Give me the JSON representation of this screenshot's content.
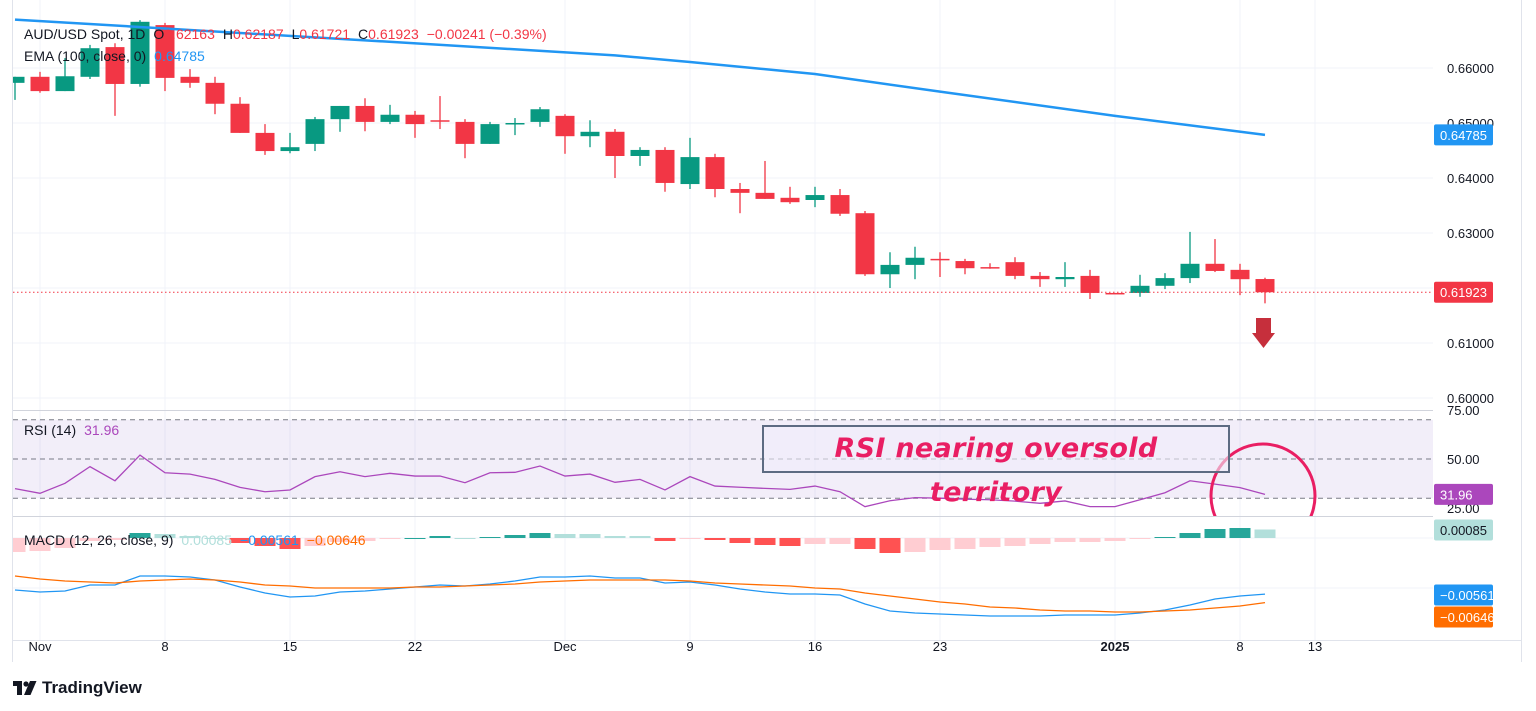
{
  "chart_data": [
    {
      "type": "candlestick",
      "symbol": "AUD/USD Spot",
      "interval": "1D",
      "legend": {
        "title": "AUD/USD Spot, 1D",
        "o_label": "O",
        "o": "0.62163",
        "h_label": "H",
        "h": "0.62187",
        "l_label": "L",
        "l": "0.61721",
        "c_label": "C",
        "c": "0.61923",
        "change": "−0.00241 (−0.39%)"
      },
      "ema_legend": {
        "label": "EMA (100, close, 0)",
        "value": "0.64785"
      },
      "y_ticks": [
        "0.66000",
        "0.65000",
        "0.64000",
        "0.63000",
        "0.61000",
        "0.60000"
      ],
      "y_tick_values": [
        0.66,
        0.65,
        0.64,
        0.63,
        0.61,
        0.6
      ],
      "last_price_label": "0.61923",
      "ema_price_label": "0.64785",
      "candle_fields": [
        "date",
        "open",
        "high",
        "low",
        "close"
      ],
      "candles": [
        [
          "2024-10-31",
          0.6573,
          0.6584,
          0.6542,
          0.6584
        ],
        [
          "2024-11-01",
          0.6584,
          0.6593,
          0.6555,
          0.6558
        ],
        [
          "2024-11-04",
          0.6558,
          0.6618,
          0.6558,
          0.6585
        ],
        [
          "2024-11-05",
          0.6584,
          0.6642,
          0.658,
          0.6636
        ],
        [
          "2024-11-06",
          0.6638,
          0.6645,
          0.6513,
          0.6571
        ],
        [
          "2024-11-07",
          0.6571,
          0.6687,
          0.6566,
          0.6684
        ],
        [
          "2024-11-08",
          0.6678,
          0.6682,
          0.6558,
          0.6582
        ],
        [
          "2024-11-11",
          0.6584,
          0.6598,
          0.6564,
          0.6573
        ],
        [
          "2024-11-12",
          0.6573,
          0.6584,
          0.6516,
          0.6535
        ],
        [
          "2024-11-13",
          0.6535,
          0.6547,
          0.6482,
          0.6482
        ],
        [
          "2024-11-14",
          0.6482,
          0.6498,
          0.6442,
          0.6449
        ],
        [
          "2024-11-15",
          0.6449,
          0.6482,
          0.6445,
          0.6456
        ],
        [
          "2024-11-18",
          0.6462,
          0.6511,
          0.6449,
          0.6507
        ],
        [
          "2024-11-19",
          0.6507,
          0.6531,
          0.6484,
          0.6531
        ],
        [
          "2024-11-20",
          0.6531,
          0.6545,
          0.6485,
          0.6502
        ],
        [
          "2024-11-21",
          0.6502,
          0.6533,
          0.6498,
          0.6515
        ],
        [
          "2024-11-22",
          0.6515,
          0.6522,
          0.6473,
          0.6498
        ],
        [
          "2024-11-25",
          0.6505,
          0.6549,
          0.6489,
          0.6504
        ],
        [
          "2024-11-26",
          0.6502,
          0.6507,
          0.6436,
          0.6462
        ],
        [
          "2024-11-27",
          0.6462,
          0.6502,
          0.6462,
          0.6498
        ],
        [
          "2024-11-28",
          0.6498,
          0.6509,
          0.6478,
          0.65
        ],
        [
          "2024-11-29",
          0.6502,
          0.6529,
          0.6493,
          0.6525
        ],
        [
          "2024-12-02",
          0.6513,
          0.6516,
          0.6444,
          0.6476
        ],
        [
          "2024-12-03",
          0.6476,
          0.6505,
          0.6456,
          0.6484
        ],
        [
          "2024-12-04",
          0.6484,
          0.6489,
          0.64,
          0.644
        ],
        [
          "2024-12-05",
          0.644,
          0.6456,
          0.6422,
          0.6451
        ],
        [
          "2024-12-06",
          0.6451,
          0.6456,
          0.6375,
          0.6391
        ],
        [
          "2024-12-09",
          0.6389,
          0.6473,
          0.638,
          0.6438
        ],
        [
          "2024-12-10",
          0.6438,
          0.6444,
          0.6365,
          0.638
        ],
        [
          "2024-12-11",
          0.638,
          0.6391,
          0.6336,
          0.6373
        ],
        [
          "2024-12-12",
          0.6373,
          0.6431,
          0.6362,
          0.6362
        ],
        [
          "2024-12-13",
          0.6364,
          0.6384,
          0.6353,
          0.6356
        ],
        [
          "2024-12-16",
          0.636,
          0.6384,
          0.6347,
          0.6369
        ],
        [
          "2024-12-17",
          0.6369,
          0.638,
          0.6331,
          0.6335
        ],
        [
          "2024-12-18",
          0.6336,
          0.634,
          0.6222,
          0.6225
        ],
        [
          "2024-12-19",
          0.6225,
          0.6265,
          0.62,
          0.6242
        ],
        [
          "2024-12-20",
          0.6242,
          0.6275,
          0.6216,
          0.6255
        ],
        [
          "2024-12-23",
          0.6253,
          0.6265,
          0.622,
          0.6251
        ],
        [
          "2024-12-24",
          0.6249,
          0.6253,
          0.6225,
          0.6236
        ],
        [
          "2024-12-25",
          0.6238,
          0.6245,
          0.6235,
          0.6236
        ],
        [
          "2024-12-26",
          0.6247,
          0.6256,
          0.6216,
          0.6222
        ],
        [
          "2024-12-27",
          0.6222,
          0.6229,
          0.6202,
          0.6216
        ],
        [
          "2024-12-30",
          0.6216,
          0.6247,
          0.6202,
          0.622
        ],
        [
          "2024-12-31",
          0.6222,
          0.6233,
          0.618,
          0.6191
        ],
        [
          "2025-01-01",
          0.6191,
          0.6191,
          0.6189,
          0.6189
        ],
        [
          "2025-01-02",
          0.6191,
          0.6224,
          0.6184,
          0.6204
        ],
        [
          "2025-01-03",
          0.6204,
          0.6227,
          0.6198,
          0.6218
        ],
        [
          "2025-01-06",
          0.6218,
          0.6302,
          0.6209,
          0.6244
        ],
        [
          "2025-01-07",
          0.6244,
          0.6289,
          0.6229,
          0.6231
        ],
        [
          "2025-01-08",
          0.6233,
          0.6244,
          0.6187,
          0.6216
        ],
        [
          "2025-01-09",
          0.62163,
          0.62187,
          0.61721,
          0.61923
        ]
      ],
      "ema_100": [
        {
          "date": "2024-10-31",
          "value": 0.6688
        },
        {
          "date": "2024-11-19",
          "value": 0.6653
        },
        {
          "date": "2024-12-04",
          "value": 0.6623
        },
        {
          "date": "2024-12-09",
          "value": 0.6611
        },
        {
          "date": "2024-12-16",
          "value": 0.6589
        },
        {
          "date": "2024-12-23",
          "value": 0.6557
        },
        {
          "date": "2025-01-01",
          "value": 0.6513
        },
        {
          "date": "2025-01-09",
          "value": 0.64785
        }
      ],
      "colors": {
        "up": "#089981",
        "down": "#f23645",
        "ema": "#2196f3",
        "last_price": "#f23645"
      },
      "signal_arrow": "down-arrow"
    },
    {
      "type": "line",
      "indicator": "RSI",
      "legend": {
        "label": "RSI (14)",
        "value": "31.96"
      },
      "y_ticks": [
        "75.00",
        "50.00",
        "25.00"
      ],
      "y_tick_values": [
        75,
        50,
        25
      ],
      "bands": [
        70,
        50,
        30
      ],
      "last_label": "31.96",
      "values": [
        34.9,
        32.5,
        37.6,
        46.1,
        38.9,
        52.0,
        43.0,
        42.3,
        39.6,
        35.5,
        33.3,
        34.2,
        41.0,
        43.5,
        41.0,
        42.7,
        41.3,
        41.3,
        37.9,
        43.0,
        43.2,
        46.4,
        41.3,
        42.3,
        38.1,
        39.6,
        34.2,
        41.0,
        36.2,
        35.6,
        35.0,
        34.5,
        36.2,
        33.3,
        25.7,
        28.7,
        30.3,
        30.0,
        29.5,
        29.2,
        28.5,
        27.4,
        28.6,
        25.7,
        25.7,
        29.2,
        32.8,
        38.9,
        37.2,
        35.4,
        31.96
      ],
      "color": "#ab47bc",
      "annotation": "RSI nearing oversold territory",
      "annotation_color": "#e91e63"
    },
    {
      "type": "bar+line",
      "indicator": "MACD",
      "legend": {
        "label": "MACD (12, 26, close, 9)",
        "histogram": "0.00085",
        "macd": "−0.00561",
        "signal": "−0.00646"
      },
      "labels": {
        "histogram": "0.00085",
        "macd": "−0.00561",
        "signal": "−0.00646"
      },
      "macd": [
        -0.0052,
        -0.0054,
        -0.0053,
        -0.0047,
        -0.0047,
        -0.0038,
        -0.0038,
        -0.0039,
        -0.0042,
        -0.0049,
        -0.0055,
        -0.0059,
        -0.0058,
        -0.0054,
        -0.0053,
        -0.0051,
        -0.0049,
        -0.0047,
        -0.0048,
        -0.0046,
        -0.0043,
        -0.0039,
        -0.0039,
        -0.0038,
        -0.004,
        -0.004,
        -0.0045,
        -0.0044,
        -0.0047,
        -0.0051,
        -0.0054,
        -0.0056,
        -0.0056,
        -0.0057,
        -0.0066,
        -0.0073,
        -0.0075,
        -0.0076,
        -0.0077,
        -0.0078,
        -0.0078,
        -0.0078,
        -0.0077,
        -0.0077,
        -0.0077,
        -0.0075,
        -0.0072,
        -0.0067,
        -0.0061,
        -0.0058,
        -0.00561
      ],
      "signal": [
        -0.0038,
        -0.0041,
        -0.0043,
        -0.0044,
        -0.0045,
        -0.0043,
        -0.0042,
        -0.0041,
        -0.0042,
        -0.0044,
        -0.0047,
        -0.0048,
        -0.005,
        -0.005,
        -0.005,
        -0.005,
        -0.0049,
        -0.0049,
        -0.0048,
        -0.0047,
        -0.0046,
        -0.0044,
        -0.0043,
        -0.0042,
        -0.0042,
        -0.0042,
        -0.0042,
        -0.0043,
        -0.0045,
        -0.0046,
        -0.0047,
        -0.0048,
        -0.005,
        -0.0051,
        -0.0055,
        -0.0058,
        -0.0061,
        -0.0064,
        -0.0066,
        -0.0069,
        -0.007,
        -0.0072,
        -0.0073,
        -0.0073,
        -0.0074,
        -0.0074,
        -0.0073,
        -0.0072,
        -0.007,
        -0.0068,
        -0.00646
      ],
      "histogram": [
        -0.0014,
        -0.0013,
        -0.001,
        -0.0003,
        -0.0002,
        0.0005,
        0.0004,
        0.0002,
        0.0,
        -0.0005,
        -0.0008,
        -0.0011,
        -0.0008,
        -0.0004,
        -0.0003,
        -0.0001,
        0.0,
        0.0002,
        0.0,
        0.0001,
        0.0003,
        0.0005,
        0.0004,
        0.0004,
        0.0002,
        0.0002,
        -0.0003,
        -0.0001,
        -0.0002,
        -0.0005,
        -0.0007,
        -0.0008,
        -0.0006,
        -0.0006,
        -0.0011,
        -0.0015,
        -0.0014,
        -0.0012,
        -0.0011,
        -0.0009,
        -0.0008,
        -0.0006,
        -0.0004,
        -0.0004,
        -0.0003,
        -0.0001,
        0.0001,
        0.0005,
        0.0009,
        0.001,
        0.00085
      ],
      "colors": {
        "macd": "#2196f3",
        "signal": "#ff6d00",
        "hist_up_strong": "#26a69a",
        "hist_up_weak": "#b2dfdb",
        "hist_down_weak": "#ffcdd2",
        "hist_down_strong": "#ff5252"
      }
    }
  ],
  "x_axis": {
    "ticks": [
      {
        "label": "Nov",
        "date": "2024-11-01",
        "bold": false
      },
      {
        "label": "8",
        "date": "2024-11-08",
        "bold": false
      },
      {
        "label": "15",
        "date": "2024-11-15",
        "bold": false
      },
      {
        "label": "22",
        "date": "2024-11-22",
        "bold": false
      },
      {
        "label": "Dec",
        "date": "2024-12-02",
        "bold": false
      },
      {
        "label": "9",
        "date": "2024-12-09",
        "bold": false
      },
      {
        "label": "16",
        "date": "2024-12-16",
        "bold": false
      },
      {
        "label": "23",
        "date": "2024-12-23",
        "bold": false
      },
      {
        "label": "2025",
        "date": "2025-01-01",
        "bold": true
      },
      {
        "label": "8",
        "date": "2025-01-08",
        "bold": false
      },
      {
        "label": "13",
        "date": "2025-01-13",
        "bold": false
      }
    ]
  },
  "branding": {
    "logo_text": "TradingView"
  }
}
